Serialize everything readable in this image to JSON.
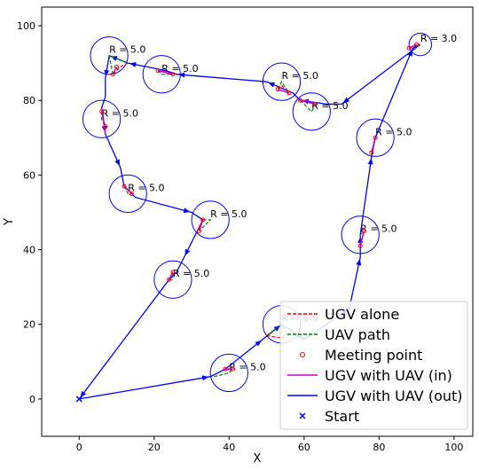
{
  "chart_data": {
    "type": "scatter",
    "xlabel": "X",
    "ylabel": "Y",
    "xlim": [
      -10,
      105
    ],
    "ylim": [
      -10,
      105
    ],
    "xticks": [
      0,
      20,
      40,
      60,
      80,
      100
    ],
    "yticks": [
      0,
      20,
      40,
      60,
      80,
      100
    ],
    "grid": false,
    "legend_position": "lower-right",
    "legend": [
      {
        "label": "UGV alone",
        "style": "dashed",
        "color": "#ff0000"
      },
      {
        "label": "UAV path",
        "style": "dashed",
        "color": "#008000"
      },
      {
        "label": "Meeting point",
        "style": "marker-o",
        "color": "#ff0000"
      },
      {
        "label": "UGV with UAV (in)",
        "style": "solid",
        "color": "#cc00cc"
      },
      {
        "label": "UGV with UAV (out)",
        "style": "solid",
        "color": "#0000ff"
      },
      {
        "label": "Start",
        "style": "marker-x",
        "color": "#0000ff"
      }
    ],
    "start": {
      "x": 0,
      "y": 0
    },
    "circles": [
      {
        "cx": 8,
        "cy": 92,
        "r": 5,
        "label": "R = 5.0"
      },
      {
        "cx": 22,
        "cy": 87,
        "r": 5,
        "label": "R = 5.0"
      },
      {
        "cx": 54,
        "cy": 85,
        "r": 5,
        "label": "R = 5.0"
      },
      {
        "cx": 62,
        "cy": 77,
        "r": 5,
        "label": "R = 5.0"
      },
      {
        "cx": 91,
        "cy": 95,
        "r": 3,
        "label": "R = 3.0"
      },
      {
        "cx": 6,
        "cy": 75,
        "r": 5,
        "label": "R = 5.0"
      },
      {
        "cx": 13,
        "cy": 55,
        "r": 5,
        "label": "R = 5.0"
      },
      {
        "cx": 35,
        "cy": 48,
        "r": 5,
        "label": "R = 5.0"
      },
      {
        "cx": 25,
        "cy": 32,
        "r": 5,
        "label": "R = 5.0"
      },
      {
        "cx": 79,
        "cy": 70,
        "r": 5,
        "label": "R = 5.0"
      },
      {
        "cx": 75,
        "cy": 44,
        "r": 5,
        "label": "R = 5.0"
      },
      {
        "cx": 54,
        "cy": 20,
        "r": 5,
        "label": "R = 5.0"
      },
      {
        "cx": 40,
        "cy": 7,
        "r": 5,
        "label": "R = 5.0"
      }
    ],
    "ugv_out_path": [
      [
        0,
        0
      ],
      [
        35,
        6
      ],
      [
        39,
        8
      ],
      [
        49,
        16
      ],
      [
        54,
        20
      ],
      [
        60,
        16
      ],
      [
        72,
        24
      ],
      [
        75,
        38
      ],
      [
        75,
        44
      ],
      [
        78,
        65
      ],
      [
        79,
        70
      ],
      [
        89,
        94
      ],
      [
        91,
        95
      ],
      [
        70,
        79
      ],
      [
        66,
        79
      ],
      [
        59,
        80
      ],
      [
        57,
        82
      ],
      [
        50,
        85
      ],
      [
        26,
        87
      ],
      [
        23,
        88
      ],
      [
        13,
        90
      ],
      [
        8,
        92
      ],
      [
        7,
        86
      ],
      [
        7,
        81
      ],
      [
        6,
        78
      ],
      [
        7,
        71
      ],
      [
        11,
        62
      ],
      [
        12,
        57
      ],
      [
        15,
        54
      ],
      [
        30,
        50
      ],
      [
        33,
        48
      ],
      [
        28,
        38
      ],
      [
        26,
        34
      ],
      [
        24,
        32
      ],
      [
        0,
        0
      ]
    ],
    "ugv_in_segments": [
      [
        [
          39,
          8
        ],
        [
          41,
          8
        ]
      ],
      [
        [
          53,
          83
        ],
        [
          56,
          82
        ]
      ],
      [
        [
          59,
          80
        ],
        [
          63,
          79
        ]
      ],
      [
        [
          21,
          88
        ],
        [
          25,
          87
        ]
      ],
      [
        [
          6,
          78
        ],
        [
          7,
          71
        ]
      ],
      [
        [
          12,
          57
        ],
        [
          14,
          55
        ]
      ],
      [
        [
          33,
          48
        ],
        [
          32,
          45
        ]
      ],
      [
        [
          24,
          32
        ],
        [
          25,
          34
        ]
      ],
      [
        [
          75,
          41
        ],
        [
          76,
          45
        ]
      ],
      [
        [
          78,
          66
        ],
        [
          79,
          70
        ]
      ],
      [
        [
          88,
          94
        ],
        [
          90,
          95
        ]
      ],
      [
        [
          9,
          87
        ],
        [
          10,
          89
        ]
      ]
    ],
    "meeting_points": [
      [
        39,
        8
      ],
      [
        41,
        8
      ],
      [
        53,
        83
      ],
      [
        56,
        82
      ],
      [
        59,
        80
      ],
      [
        63,
        79
      ],
      [
        9,
        87
      ],
      [
        10,
        89
      ],
      [
        21,
        88
      ],
      [
        25,
        87
      ],
      [
        6,
        77
      ],
      [
        7,
        73
      ],
      [
        12,
        57
      ],
      [
        14,
        55
      ],
      [
        33,
        48
      ],
      [
        32,
        45
      ],
      [
        24,
        32
      ],
      [
        25,
        34
      ],
      [
        75,
        41
      ],
      [
        76,
        45
      ],
      [
        78,
        66
      ],
      [
        79,
        70
      ],
      [
        88,
        94
      ],
      [
        90,
        95
      ]
    ],
    "ugv_alone_segments": [
      [
        [
          9,
          87
        ],
        [
          11,
          89
        ],
        [
          13,
          90
        ]
      ],
      [
        [
          21,
          88
        ],
        [
          24,
          87.5
        ],
        [
          25,
          87
        ]
      ],
      [
        [
          53,
          83
        ],
        [
          54,
          84
        ],
        [
          56,
          82
        ]
      ],
      [
        [
          59,
          80
        ],
        [
          61,
          80
        ],
        [
          63,
          79
        ]
      ],
      [
        [
          6,
          77
        ],
        [
          6.5,
          75
        ],
        [
          7,
          73
        ]
      ],
      [
        [
          12,
          57
        ],
        [
          13,
          56
        ],
        [
          14,
          55
        ]
      ],
      [
        [
          33,
          48
        ],
        [
          32,
          46
        ],
        [
          32,
          45
        ]
      ],
      [
        [
          24,
          32
        ],
        [
          24.5,
          33
        ],
        [
          25,
          34
        ]
      ],
      [
        [
          75,
          41
        ],
        [
          75.5,
          43
        ],
        [
          76,
          45
        ]
      ],
      [
        [
          78,
          66
        ],
        [
          78.5,
          68
        ],
        [
          79,
          70
        ]
      ],
      [
        [
          88,
          94
        ],
        [
          89,
          94.5
        ],
        [
          90,
          95
        ]
      ],
      [
        [
          50,
          17
        ],
        [
          53,
          16.5
        ],
        [
          56,
          16.5
        ]
      ],
      [
        [
          39,
          8
        ],
        [
          40,
          8
        ],
        [
          41,
          8
        ]
      ]
    ],
    "uav_segments": [
      [
        [
          9,
          87
        ],
        [
          8,
          92
        ],
        [
          13,
          90
        ]
      ],
      [
        [
          21,
          88
        ],
        [
          22,
          87
        ],
        [
          25,
          87
        ]
      ],
      [
        [
          53,
          83
        ],
        [
          54,
          85
        ],
        [
          56,
          82
        ]
      ],
      [
        [
          59,
          80
        ],
        [
          62,
          77
        ],
        [
          63,
          79
        ]
      ],
      [
        [
          6,
          77
        ],
        [
          6,
          75
        ],
        [
          7,
          73
        ]
      ],
      [
        [
          12,
          57
        ],
        [
          13,
          55
        ],
        [
          14,
          55
        ]
      ],
      [
        [
          33,
          48
        ],
        [
          35,
          48
        ],
        [
          32,
          45
        ]
      ],
      [
        [
          24,
          32
        ],
        [
          25,
          32
        ],
        [
          25,
          34
        ]
      ],
      [
        [
          75,
          41
        ],
        [
          75,
          44
        ],
        [
          76,
          45
        ]
      ],
      [
        [
          78,
          66
        ],
        [
          79,
          70
        ],
        [
          79,
          70
        ]
      ],
      [
        [
          88,
          94
        ],
        [
          91,
          95
        ],
        [
          90,
          95
        ]
      ],
      [
        [
          36,
          6
        ],
        [
          40,
          7
        ],
        [
          41,
          8
        ]
      ],
      [
        [
          50,
          17
        ],
        [
          54,
          20
        ],
        [
          56,
          16.5
        ]
      ]
    ]
  }
}
